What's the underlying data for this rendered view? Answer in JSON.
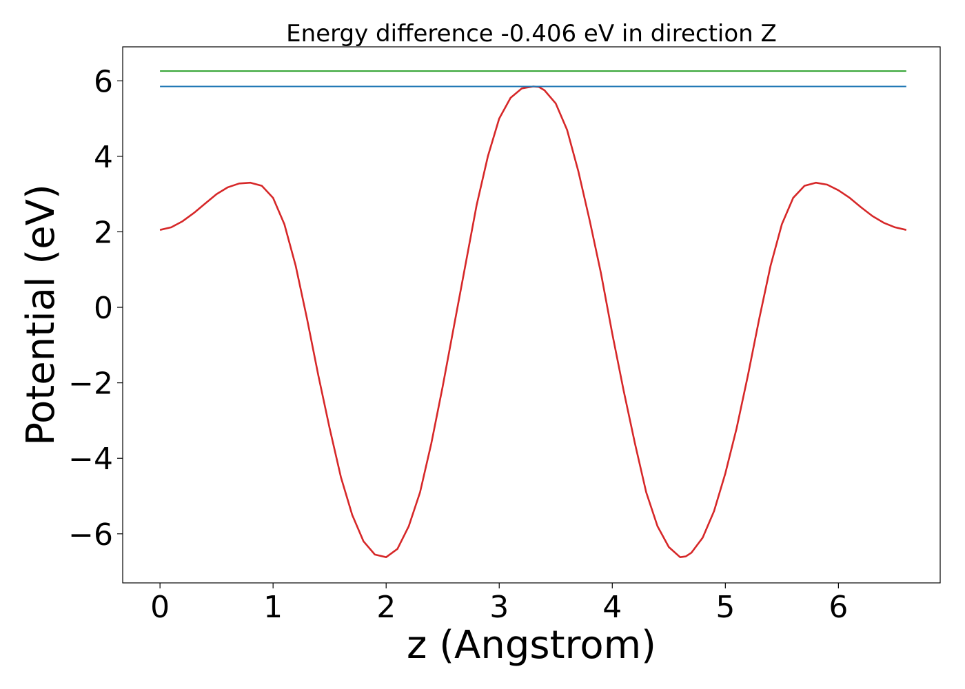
{
  "chart_data": {
    "type": "line",
    "title": "Energy difference -0.406 eV in direction Z",
    "xlabel": "z (Angstrom)",
    "ylabel": "Potential (eV)",
    "xlim": [
      -0.33,
      6.9
    ],
    "ylim": [
      -7.3,
      6.9
    ],
    "xticks": [
      0,
      1,
      2,
      3,
      4,
      5,
      6
    ],
    "yticks": [
      -6,
      -4,
      -2,
      0,
      2,
      4,
      6
    ],
    "ytick_labels": [
      "−6",
      "−4",
      "−2",
      "0",
      "2",
      "4",
      "6"
    ],
    "grid": false,
    "series": [
      {
        "color": "#d62728",
        "x": [
          0.0,
          0.1,
          0.2,
          0.3,
          0.4,
          0.5,
          0.6,
          0.7,
          0.8,
          0.9,
          1.0,
          1.1,
          1.2,
          1.3,
          1.4,
          1.5,
          1.6,
          1.7,
          1.8,
          1.9,
          2.0,
          2.1,
          2.2,
          2.3,
          2.4,
          2.5,
          2.6,
          2.7,
          2.8,
          2.9,
          3.0,
          3.1,
          3.2,
          3.3,
          3.35,
          3.4,
          3.5,
          3.6,
          3.7,
          3.8,
          3.9,
          4.0,
          4.1,
          4.2,
          4.3,
          4.4,
          4.5,
          4.6,
          4.65,
          4.7,
          4.8,
          4.9,
          5.0,
          5.1,
          5.2,
          5.3,
          5.4,
          5.5,
          5.6,
          5.7,
          5.8,
          5.9,
          6.0,
          6.1,
          6.2,
          6.3,
          6.4,
          6.5,
          6.6
        ],
        "y": [
          2.05,
          2.12,
          2.28,
          2.5,
          2.75,
          3.0,
          3.18,
          3.28,
          3.3,
          3.22,
          2.9,
          2.2,
          1.1,
          -0.3,
          -1.8,
          -3.2,
          -4.5,
          -5.5,
          -6.2,
          -6.55,
          -6.62,
          -6.4,
          -5.8,
          -4.9,
          -3.6,
          -2.1,
          -0.5,
          1.1,
          2.7,
          4.0,
          5.0,
          5.55,
          5.8,
          5.85,
          5.84,
          5.75,
          5.4,
          4.7,
          3.6,
          2.3,
          0.9,
          -0.7,
          -2.2,
          -3.6,
          -4.9,
          -5.8,
          -6.35,
          -6.62,
          -6.6,
          -6.5,
          -6.1,
          -5.4,
          -4.4,
          -3.2,
          -1.8,
          -0.3,
          1.1,
          2.2,
          2.9,
          3.22,
          3.3,
          3.25,
          3.1,
          2.9,
          2.65,
          2.42,
          2.24,
          2.12,
          2.05
        ]
      },
      {
        "color": "#1f77b4",
        "x": [
          0.0,
          6.6
        ],
        "y": [
          5.85,
          5.85
        ]
      },
      {
        "color": "#2ca02c",
        "x": [
          0.0,
          6.6
        ],
        "y": [
          6.26,
          6.26
        ]
      }
    ]
  }
}
